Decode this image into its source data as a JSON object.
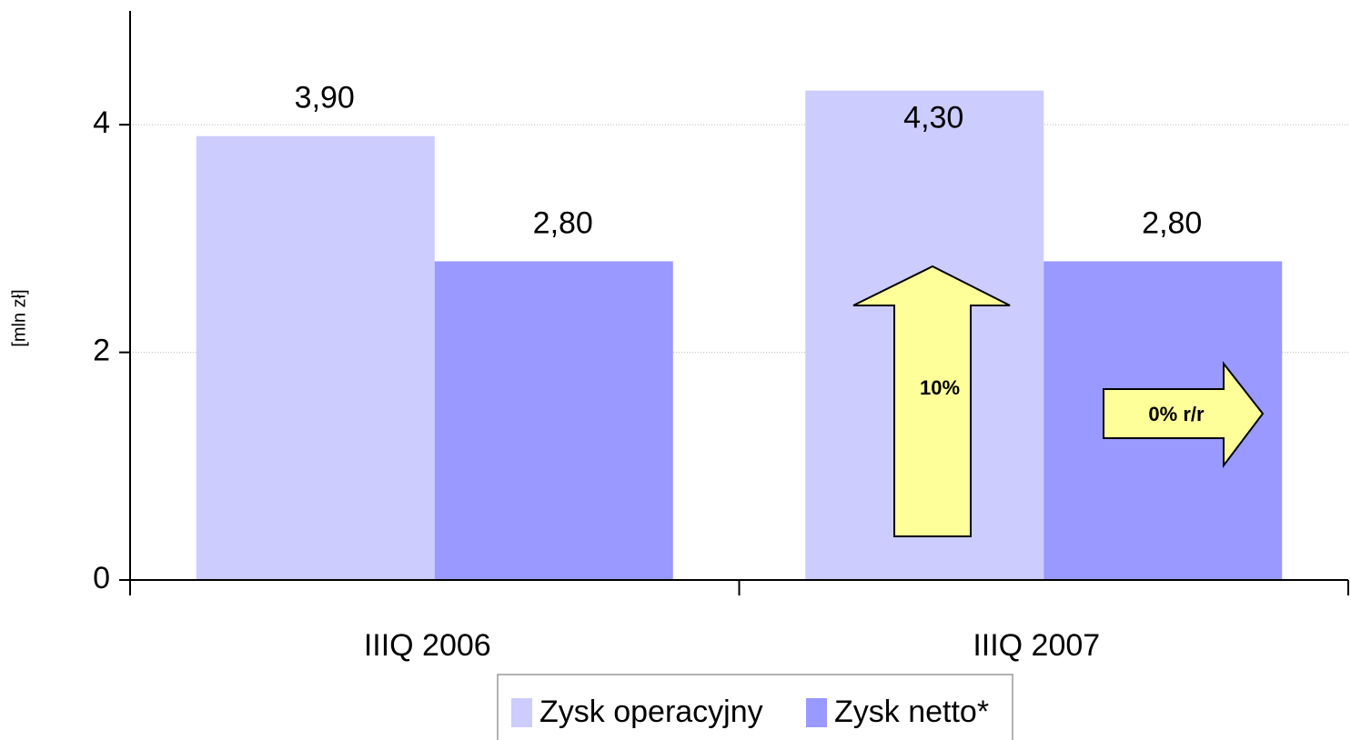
{
  "chart_data": {
    "type": "bar",
    "categories": [
      "IIIQ 2006",
      "IIIQ 2007"
    ],
    "series": [
      {
        "name": "Zysk operacyjny",
        "color": "#ccccff",
        "values": [
          3.9,
          4.3
        ],
        "value_labels": [
          "3,90",
          "4,30"
        ]
      },
      {
        "name": "Zysk netto*",
        "color": "#9999ff",
        "values": [
          2.8,
          2.8
        ],
        "value_labels": [
          "2,80",
          "2,80"
        ]
      }
    ],
    "ylabel": "[mln zł]",
    "ylim": [
      0,
      5
    ],
    "yticks": [
      0,
      2,
      4
    ],
    "grid": true,
    "legend": "bottom",
    "annotations": [
      "10%",
      "0% r/r"
    ]
  }
}
